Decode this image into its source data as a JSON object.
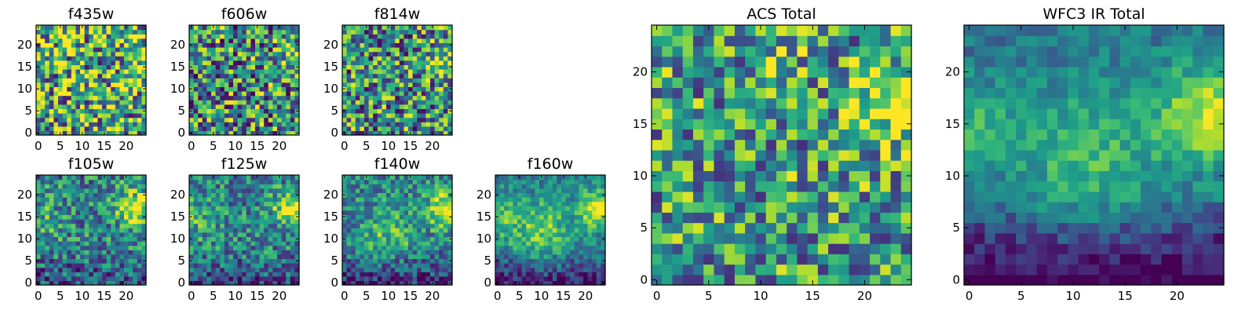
{
  "figure": {
    "description_free": true,
    "colormap": "viridis",
    "colormap_stops": [
      "#440154",
      "#482878",
      "#3e4989",
      "#31688e",
      "#26828e",
      "#1f9e89",
      "#35b779",
      "#6ece58",
      "#b5de2b",
      "#fde725"
    ]
  },
  "chart_data": [
    {
      "type": "heatmap",
      "title": "f435w",
      "grid_size": 25,
      "xlim": [
        -0.5,
        24.5
      ],
      "ylim": [
        -0.5,
        24.5
      ],
      "xticks": [
        0,
        5,
        10,
        15,
        20
      ],
      "yticks": [
        0,
        5,
        10,
        15,
        20
      ],
      "noise": 0.55,
      "seed": 11,
      "sources": [
        {
          "x": 22,
          "y": 18,
          "amp": 0.1,
          "sigma": 3
        }
      ],
      "base": 0.62
    },
    {
      "type": "heatmap",
      "title": "f606w",
      "grid_size": 25,
      "xlim": [
        -0.5,
        24.5
      ],
      "ylim": [
        -0.5,
        24.5
      ],
      "xticks": [
        0,
        5,
        10,
        15,
        20
      ],
      "yticks": [
        0,
        5,
        10,
        15,
        20
      ],
      "noise": 0.5,
      "seed": 23,
      "sources": [
        {
          "x": 23,
          "y": 17,
          "amp": 0.35,
          "sigma": 2.2
        }
      ],
      "base": 0.5
    },
    {
      "type": "heatmap",
      "title": "f814w",
      "grid_size": 25,
      "xlim": [
        -0.5,
        24.5
      ],
      "ylim": [
        -0.5,
        24.5
      ],
      "xticks": [
        0,
        5,
        10,
        15,
        20
      ],
      "yticks": [
        0,
        5,
        10,
        15,
        20
      ],
      "noise": 0.48,
      "seed": 37,
      "sources": [
        {
          "x": 23,
          "y": 17,
          "amp": 0.4,
          "sigma": 2.5
        }
      ],
      "base": 0.5
    },
    {
      "type": "heatmap",
      "title": "f105w",
      "grid_size": 25,
      "xlim": [
        -0.5,
        24.5
      ],
      "ylim": [
        -0.5,
        24.5
      ],
      "xticks": [
        0,
        5,
        10,
        15,
        20
      ],
      "yticks": [
        0,
        5,
        10,
        15,
        20
      ],
      "noise": 0.32,
      "seed": 41,
      "sources": [
        {
          "x": 22,
          "y": 17,
          "amp": 0.5,
          "sigma": 3
        },
        {
          "x": 0,
          "y": 15,
          "amp": 0.15,
          "sigma": 4
        }
      ],
      "base": 0.45,
      "floor_gradient": 0.2
    },
    {
      "type": "heatmap",
      "title": "f125w",
      "grid_size": 25,
      "xlim": [
        -0.5,
        24.5
      ],
      "ylim": [
        -0.5,
        24.5
      ],
      "xticks": [
        0,
        5,
        10,
        15,
        20
      ],
      "yticks": [
        0,
        5,
        10,
        15,
        20
      ],
      "noise": 0.3,
      "seed": 53,
      "sources": [
        {
          "x": 23,
          "y": 17,
          "amp": 0.55,
          "sigma": 2.8
        },
        {
          "x": 1,
          "y": 15,
          "amp": 0.2,
          "sigma": 3
        }
      ],
      "base": 0.45,
      "floor_gradient": 0.2
    },
    {
      "type": "heatmap",
      "title": "f140w",
      "grid_size": 25,
      "xlim": [
        -0.5,
        24.5
      ],
      "ylim": [
        -0.5,
        24.5
      ],
      "xticks": [
        0,
        5,
        10,
        15,
        20
      ],
      "yticks": [
        0,
        5,
        10,
        15,
        20
      ],
      "noise": 0.26,
      "seed": 67,
      "sources": [
        {
          "x": 23,
          "y": 17,
          "amp": 0.55,
          "sigma": 3
        },
        {
          "x": 10,
          "y": 12,
          "amp": 0.25,
          "sigma": 4
        }
      ],
      "base": 0.45,
      "floor_gradient": 0.3
    },
    {
      "type": "heatmap",
      "title": "f160w",
      "grid_size": 25,
      "xlim": [
        -0.5,
        24.5
      ],
      "ylim": [
        -0.5,
        24.5
      ],
      "xticks": [
        0,
        5,
        10,
        15,
        20
      ],
      "yticks": [
        0,
        5,
        10,
        15,
        20
      ],
      "noise": 0.2,
      "seed": 79,
      "sources": [
        {
          "x": 23,
          "y": 17,
          "amp": 0.55,
          "sigma": 3
        },
        {
          "x": 10,
          "y": 12,
          "amp": 0.35,
          "sigma": 5
        },
        {
          "x": 0,
          "y": 15,
          "amp": 0.3,
          "sigma": 3
        }
      ],
      "base": 0.42,
      "floor_gradient": 0.35
    },
    {
      "type": "heatmap",
      "title": "ACS Total",
      "grid_size": 25,
      "xlim": [
        -0.5,
        24.5
      ],
      "ylim": [
        -0.5,
        24.5
      ],
      "xticks": [
        0,
        5,
        10,
        15,
        20
      ],
      "yticks": [
        0,
        5,
        10,
        15,
        20
      ],
      "noise": 0.42,
      "seed": 91,
      "sources": [
        {
          "x": 23,
          "y": 17,
          "amp": 0.45,
          "sigma": 2.5
        },
        {
          "x": 12,
          "y": 20,
          "amp": 0.2,
          "sigma": 1.5
        }
      ],
      "base": 0.55
    },
    {
      "type": "heatmap",
      "title": "WFC3 IR Total",
      "grid_size": 25,
      "xlim": [
        -0.5,
        24.5
      ],
      "ylim": [
        -0.5,
        24.5
      ],
      "xticks": [
        0,
        5,
        10,
        15,
        20
      ],
      "yticks": [
        0,
        5,
        10,
        15,
        20
      ],
      "noise": 0.14,
      "seed": 103,
      "sources": [
        {
          "x": 23,
          "y": 16,
          "amp": 0.5,
          "sigma": 3.5
        },
        {
          "x": 11,
          "y": 12,
          "amp": 0.3,
          "sigma": 5
        },
        {
          "x": 0,
          "y": 15,
          "amp": 0.25,
          "sigma": 3
        }
      ],
      "base": 0.38,
      "floor_gradient": 0.45
    }
  ]
}
